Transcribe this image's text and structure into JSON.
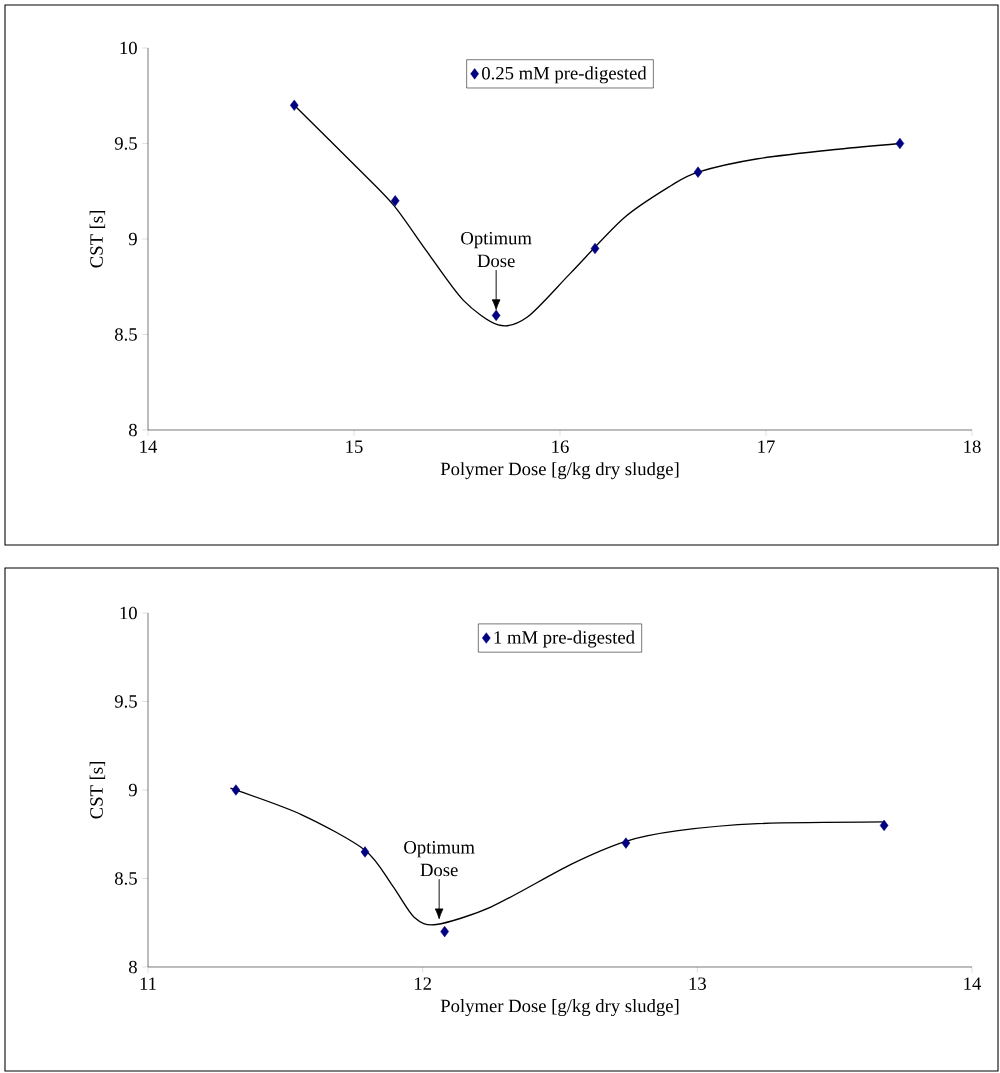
{
  "chart_data": [
    {
      "type": "scatter",
      "xlabel": "Polymer Dose [g/kg dry sludge]",
      "ylabel": "CST [s]",
      "xlim": [
        14,
        18
      ],
      "ylim": [
        8,
        10
      ],
      "xticks": [
        14,
        15,
        16,
        17,
        18
      ],
      "yticks": [
        8,
        8.5,
        9,
        9.5,
        10
      ],
      "grid": false,
      "legend": "top",
      "marker": "diamond",
      "annotations": [
        {
          "text": "Optimum Dose",
          "x": 15.69,
          "y": 8.6
        }
      ],
      "series": [
        {
          "type": "line",
          "color": "#000000",
          "marker": "none",
          "x": [
            14.71,
            15.0,
            15.19,
            15.35,
            15.53,
            15.7,
            15.84,
            16.05,
            16.31,
            16.54,
            16.67,
            16.96,
            17.35,
            17.65
          ],
          "values": [
            9.7,
            9.39,
            9.18,
            8.94,
            8.68,
            8.55,
            8.59,
            8.82,
            9.11,
            9.28,
            9.35,
            9.42,
            9.47,
            9.5
          ]
        },
        {
          "name": "0.25 mM pre-digested",
          "color": "#000080",
          "x": [
            14.71,
            15.2,
            15.69,
            16.17,
            16.67,
            17.65
          ],
          "values": [
            9.7,
            9.2,
            8.6,
            8.95,
            9.35,
            9.5
          ]
        }
      ]
    },
    {
      "type": "scatter",
      "xlabel": "Polymer Dose [g/kg dry sludge]",
      "ylabel": "CST [s]",
      "xlim": [
        11,
        14
      ],
      "ylim": [
        8,
        10
      ],
      "xticks": [
        11,
        12,
        13,
        14
      ],
      "yticks": [
        8,
        8.5,
        9,
        9.5,
        10
      ],
      "grid": false,
      "legend": "top",
      "marker": "diamond",
      "annotations": [
        {
          "text": "Optimum Dose",
          "x": 12.06,
          "y": 8.24
        }
      ],
      "series": [
        {
          "type": "line",
          "color": "#000000",
          "marker": "none",
          "x": [
            11.3,
            11.56,
            11.79,
            11.89,
            11.97,
            12.05,
            12.25,
            12.54,
            12.74,
            12.93,
            13.22,
            13.68
          ],
          "values": [
            9.01,
            8.86,
            8.66,
            8.46,
            8.28,
            8.24,
            8.34,
            8.58,
            8.71,
            8.77,
            8.81,
            8.82
          ]
        },
        {
          "name": "1 mM pre-digested",
          "color": "#000080",
          "x": [
            11.32,
            11.79,
            12.08,
            12.74,
            13.68
          ],
          "values": [
            9.0,
            8.65,
            8.2,
            8.7,
            8.8
          ]
        }
      ]
    }
  ]
}
